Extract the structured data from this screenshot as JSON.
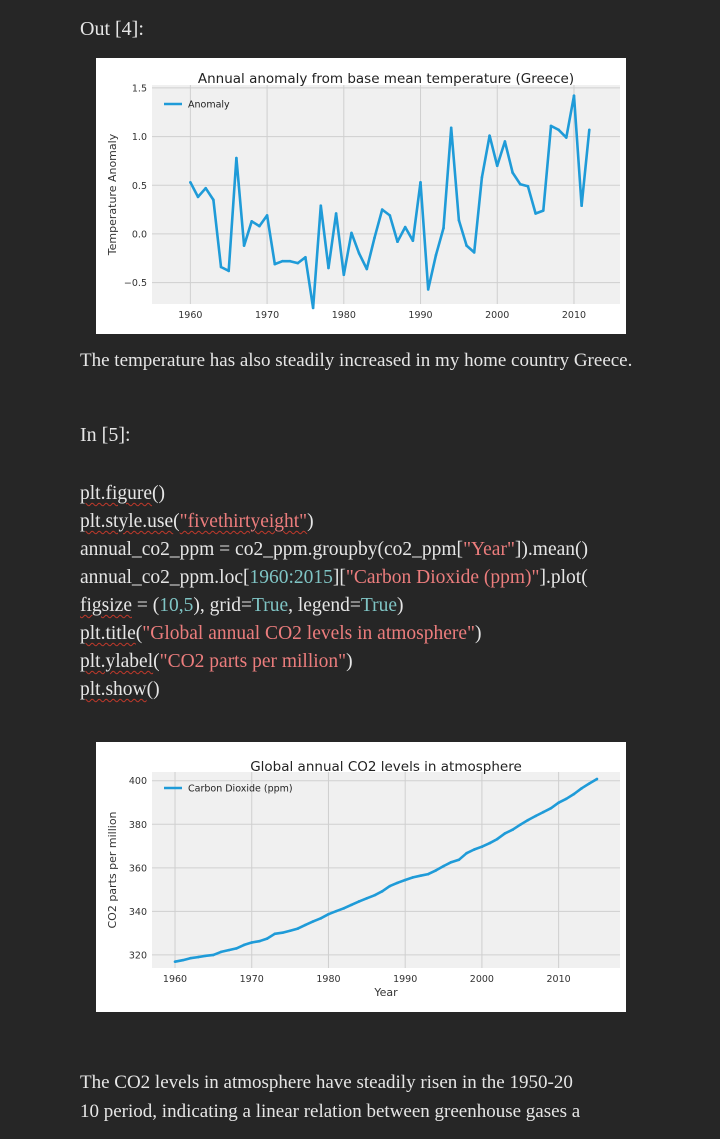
{
  "cells": {
    "out_label": "Out [4]:",
    "in_label": "In [5]:"
  },
  "text": {
    "para1": "The temperature has also steadily increased in my home country Greece.",
    "para2_line1": "The CO2 levels in atmosphere have steadily risen in the 1950-20",
    "para2_line2": "10 period, indicating a linear relation between greenhouse gases a"
  },
  "code": {
    "l1_fn": "plt.figure",
    "l1_rest": "()",
    "l2_fn": "plt.style.use",
    "l2_open": "(",
    "l2_str": "\"fivethirtyeight\"",
    "l2_close": ")",
    "l3_a": "annual_co2_ppm = co2_ppm.groupby(co2_ppm[",
    "l3_str": "\"Year\"",
    "l3_b": "]).mean()",
    "l4_a": "annual_co2_ppm.loc[",
    "l4_num": "1960:2015",
    "l4_b": "][",
    "l4_str": "\"Carbon Dioxide (ppm)\"",
    "l4_c": "].plot(",
    "l5_fn": "figsize",
    "l5_a": " = (",
    "l5_num": "10,5",
    "l5_b": "), grid=",
    "l5_t1": "True",
    "l5_c": ", legend=",
    "l5_t2": "True",
    "l5_d": ")",
    "l6_fn": "plt.title",
    "l6_open": "(",
    "l6_str": "\"Global annual CO2 levels in atmosphere\"",
    "l6_close": ")",
    "l7_fn": "plt.ylabel",
    "l7_open": "(",
    "l7_str": "\"CO2 parts per million\"",
    "l7_close": ")",
    "l8_fn": "plt.show",
    "l8_rest": "()"
  },
  "colors": {
    "line": "#1f9bd8",
    "grid": "#cfcfcf",
    "axes_bg": "#f0f0f0"
  },
  "chart_data": [
    {
      "type": "line",
      "title": "Annual anomaly from base mean temperature (Greece)",
      "ylabel": "Temperature Anomaly",
      "xlabel": "",
      "xlim": [
        1955,
        2016
      ],
      "ylim": [
        -0.72,
        1.53
      ],
      "xticks": [
        1960,
        1970,
        1980,
        1990,
        2000,
        2010
      ],
      "yticks": [
        -0.5,
        0.0,
        0.5,
        1.0,
        1.5
      ],
      "ytick_labels": [
        "−0.5",
        "0.0",
        "0.5",
        "1.0",
        "1.5"
      ],
      "grid": true,
      "legend_loc": "upper-left",
      "series": [
        {
          "name": "Anomaly",
          "x": [
            1960,
            1961,
            1962,
            1963,
            1964,
            1965,
            1966,
            1967,
            1968,
            1969,
            1970,
            1971,
            1972,
            1973,
            1974,
            1975,
            1976,
            1977,
            1978,
            1979,
            1980,
            1981,
            1982,
            1983,
            1984,
            1985,
            1986,
            1987,
            1988,
            1989,
            1990,
            1991,
            1992,
            1993,
            1994,
            1995,
            1996,
            1997,
            1998,
            1999,
            2000,
            2001,
            2002,
            2003,
            2004,
            2005,
            2006,
            2007,
            2008,
            2009,
            2010,
            2011,
            2012,
            2013,
            2014
          ],
          "values": [
            0.53,
            0.38,
            0.47,
            0.35,
            -0.34,
            -0.38,
            0.78,
            -0.12,
            0.13,
            0.08,
            0.19,
            -0.31,
            -0.28,
            -0.28,
            -0.3,
            -0.24,
            -0.76,
            0.29,
            -0.35,
            0.21,
            -0.42,
            0.01,
            -0.2,
            -0.36,
            -0.04,
            0.25,
            0.19,
            -0.08,
            0.07,
            -0.07,
            0.53,
            -0.57,
            -0.22,
            0.06,
            1.09,
            0.14,
            -0.12,
            -0.19,
            0.58,
            1.01,
            0.7,
            0.95,
            0.63,
            0.51,
            0.49,
            0.21,
            0.24,
            1.11,
            1.07,
            0.99,
            1.42,
            0.29,
            1.07,
            null,
            null
          ]
        }
      ]
    },
    {
      "type": "line",
      "title": "Global annual CO2 levels in atmosphere",
      "ylabel": "CO2 parts per million",
      "xlabel": "Year",
      "xlim": [
        1957,
        2018
      ],
      "ylim": [
        314,
        404
      ],
      "xticks": [
        1960,
        1970,
        1980,
        1990,
        2000,
        2010
      ],
      "yticks": [
        320,
        340,
        360,
        380,
        400
      ],
      "grid": true,
      "legend_loc": "upper-left",
      "series": [
        {
          "name": "Carbon Dioxide (ppm)",
          "x": [
            1960,
            1961,
            1962,
            1963,
            1964,
            1965,
            1966,
            1967,
            1968,
            1969,
            1970,
            1971,
            1972,
            1973,
            1974,
            1975,
            1976,
            1977,
            1978,
            1979,
            1980,
            1981,
            1982,
            1983,
            1984,
            1985,
            1986,
            1987,
            1988,
            1989,
            1990,
            1991,
            1992,
            1993,
            1994,
            1995,
            1996,
            1997,
            1998,
            1999,
            2000,
            2001,
            2002,
            2003,
            2004,
            2005,
            2006,
            2007,
            2008,
            2009,
            2010,
            2011,
            2012,
            2013,
            2014,
            2015
          ],
          "values": [
            316.9,
            317.6,
            318.5,
            319.0,
            319.6,
            320.0,
            321.4,
            322.2,
            323.0,
            324.6,
            325.7,
            326.3,
            327.5,
            329.7,
            330.2,
            331.1,
            332.1,
            333.8,
            335.4,
            336.8,
            338.7,
            340.1,
            341.4,
            343.0,
            344.6,
            346.0,
            347.4,
            349.2,
            351.6,
            353.1,
            354.4,
            355.6,
            356.4,
            357.1,
            358.8,
            360.8,
            362.6,
            363.7,
            366.7,
            368.4,
            369.7,
            371.3,
            373.2,
            375.8,
            377.5,
            379.8,
            381.9,
            383.8,
            385.6,
            387.4,
            389.9,
            391.7,
            393.9,
            396.5,
            398.7,
            400.8
          ]
        }
      ]
    }
  ]
}
